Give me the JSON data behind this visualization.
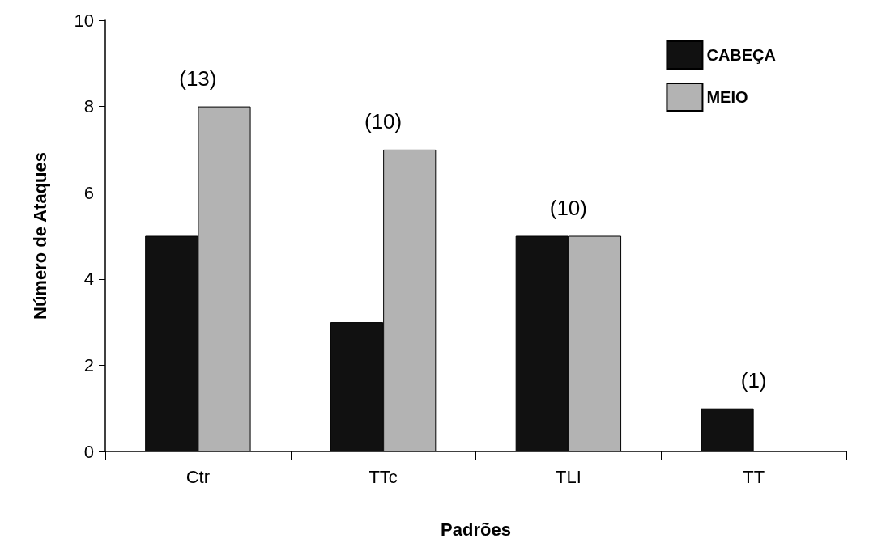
{
  "chart_data": {
    "type": "bar",
    "xlabel": "Padrões",
    "ylabel": "Número de Ataques",
    "categories": [
      "Ctr",
      "TTc",
      "TLI",
      "TT"
    ],
    "series": [
      {
        "name": "CABEÇA",
        "color": "#111111",
        "values": [
          5,
          3,
          5,
          1
        ]
      },
      {
        "name": "MEIO",
        "color": "#b3b3b3",
        "values": [
          8,
          7,
          5,
          null
        ]
      }
    ],
    "totals": [
      "(13)",
      "(10)",
      "(10)",
      "(1)"
    ],
    "ylim": [
      0,
      10
    ],
    "yticks": [
      0,
      2,
      4,
      6,
      8,
      10
    ],
    "grid": false,
    "legend": "top right"
  }
}
